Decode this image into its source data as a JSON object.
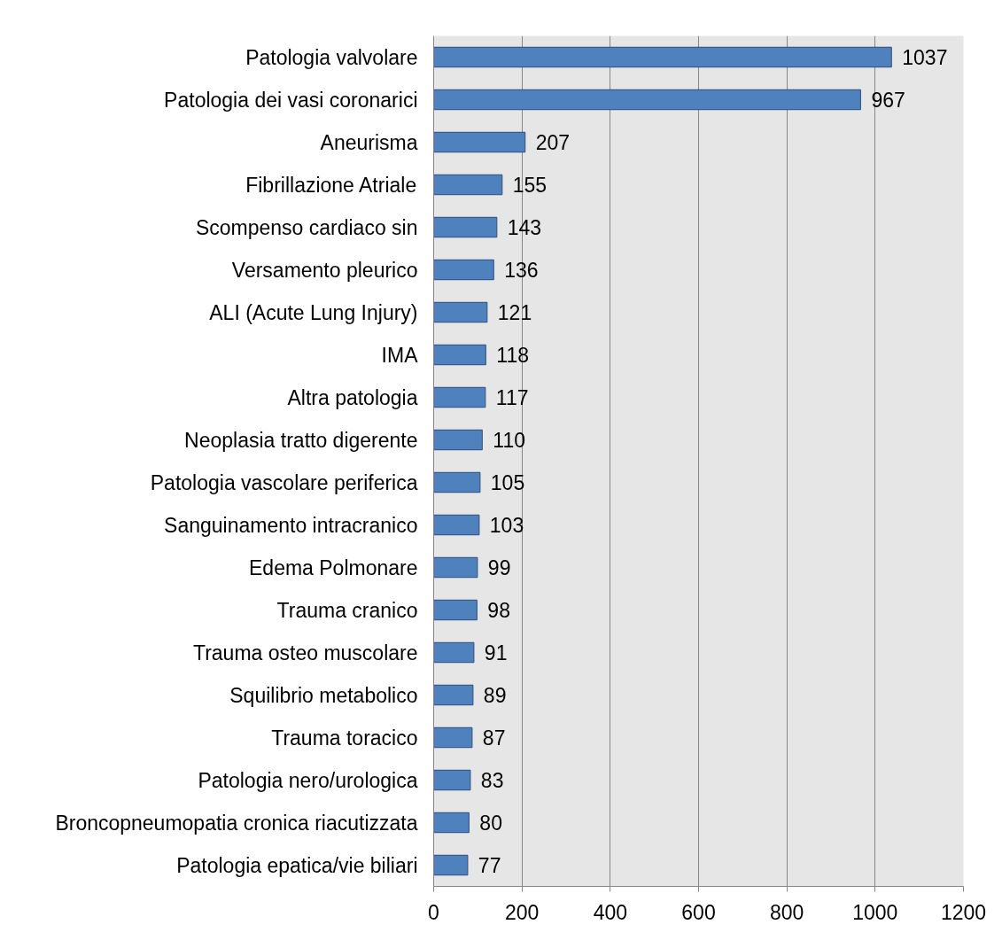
{
  "chart_data": {
    "type": "bar",
    "orientation": "horizontal",
    "categories": [
      "Patologia valvolare",
      "Patologia dei vasi coronarici",
      "Aneurisma",
      "Fibrillazione Atriale",
      "Scompenso cardiaco sin",
      "Versamento pleurico",
      "ALI (Acute Lung Injury)",
      "IMA",
      "Altra patologia",
      "Neoplasia tratto digerente",
      "Patologia vascolare periferica",
      "Sanguinamento intracranico",
      "Edema Polmonare",
      "Trauma cranico",
      "Trauma osteo muscolare",
      "Squilibrio metabolico",
      "Trauma toracico",
      "Patologia nero/urologica",
      "Broncopneumopatia cronica riacutizzata",
      "Patologia epatica/vie biliari"
    ],
    "values": [
      1037,
      967,
      207,
      155,
      143,
      136,
      121,
      118,
      117,
      110,
      105,
      103,
      99,
      98,
      91,
      89,
      87,
      83,
      80,
      77
    ],
    "color": "#4f81bd",
    "xlim": [
      0,
      1200
    ],
    "xticks": [
      0,
      200,
      400,
      600,
      800,
      1000,
      1200
    ],
    "grid": "x",
    "data_labels": true
  }
}
